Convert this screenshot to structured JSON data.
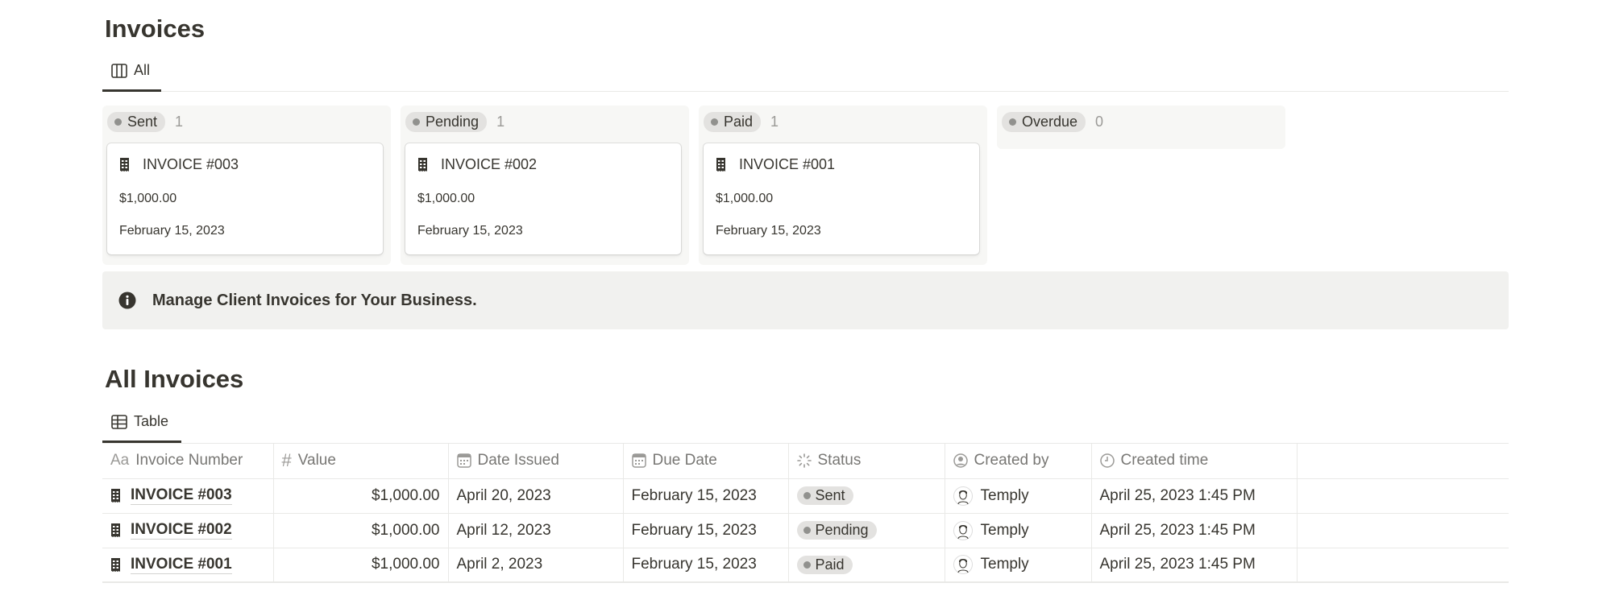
{
  "board": {
    "title": "Invoices",
    "view_tab": "All",
    "view_icon": "board-icon",
    "columns": [
      {
        "label": "Sent",
        "count": "1",
        "cards": [
          {
            "title": "INVOICE #003",
            "value": "$1,000.00",
            "date": "February 15, 2023"
          }
        ]
      },
      {
        "label": "Pending",
        "count": "1",
        "cards": [
          {
            "title": "INVOICE #002",
            "value": "$1,000.00",
            "date": "February 15, 2023"
          }
        ]
      },
      {
        "label": "Paid",
        "count": "1",
        "cards": [
          {
            "title": "INVOICE #001",
            "value": "$1,000.00",
            "date": "February 15, 2023"
          }
        ]
      },
      {
        "label": "Overdue",
        "count": "0",
        "cards": []
      }
    ]
  },
  "callout": {
    "icon": "info-icon",
    "text": "Manage Client Invoices for Your Business."
  },
  "table": {
    "title": "All Invoices",
    "view_tab": "Table",
    "view_icon": "table-icon",
    "columns": [
      {
        "label": "Invoice Number",
        "icon": "Aa"
      },
      {
        "label": "Value",
        "icon": "#"
      },
      {
        "label": "Date Issued",
        "icon": "calendar-icon"
      },
      {
        "label": "Due Date",
        "icon": "calendar-icon"
      },
      {
        "label": "Status",
        "icon": "status-icon"
      },
      {
        "label": "Created by",
        "icon": "person-icon"
      },
      {
        "label": "Created time",
        "icon": "clock-icon"
      }
    ],
    "rows": [
      {
        "invoice": "INVOICE #003",
        "value": "$1,000.00",
        "issued": "April 20, 2023",
        "due": "February 15, 2023",
        "status": "Sent",
        "created_by": "Temply",
        "created_time": "April 25, 2023 1:45 PM"
      },
      {
        "invoice": "INVOICE #002",
        "value": "$1,000.00",
        "issued": "April 12, 2023",
        "due": "February 15, 2023",
        "status": "Pending",
        "created_by": "Temply",
        "created_time": "April 25, 2023 1:45 PM"
      },
      {
        "invoice": "INVOICE #001",
        "value": "$1,000.00",
        "issued": "April 2, 2023",
        "due": "February 15, 2023",
        "status": "Paid",
        "created_by": "Temply",
        "created_time": "April 25, 2023 1:45 PM"
      }
    ]
  },
  "colors": {
    "text": "#37352f",
    "pill": "#e3e2e0",
    "callout_bg": "#f1f1ef",
    "column_bg": "#f7f7f5"
  }
}
